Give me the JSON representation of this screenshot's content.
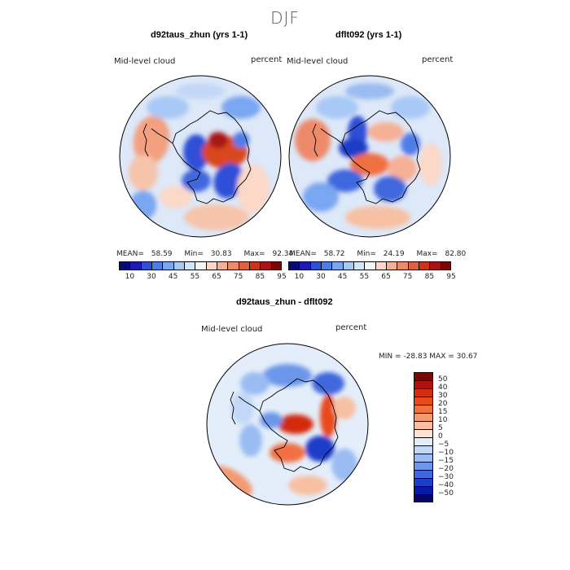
{
  "season": "DJF",
  "panels": [
    {
      "title": "d92taus_zhun (yrs 1-1)",
      "variable": "Mid-level cloud",
      "units": "percent",
      "stats": {
        "mean_label": "MEAN=",
        "mean": "58.59",
        "min_label": "Min=",
        "min": "30.83",
        "max_label": "Max=",
        "max": "92.34"
      }
    },
    {
      "title": "dflt092 (yrs 1-1)",
      "variable": "Mid-level cloud",
      "units": "percent",
      "stats": {
        "mean_label": "MEAN=",
        "mean": "58.72",
        "min_label": "Min=",
        "min": "24.19",
        "max_label": "Max=",
        "max": "82.80"
      }
    },
    {
      "title": "d92taus_zhun - dflt092",
      "variable": "Mid-level cloud",
      "units": "percent",
      "minmax_text": "MIN = -28.83 MAX =   30.67"
    }
  ],
  "abs_colorbar": {
    "colors": [
      "#08087a",
      "#1c1cb4",
      "#2e4fd6",
      "#4f7de8",
      "#7aa6f2",
      "#a8c8f6",
      "#d6e6fa",
      "#f5f5f5",
      "#fbd8c8",
      "#f6b096",
      "#ee8a6a",
      "#e45f3e",
      "#cc3318",
      "#a81414",
      "#7a0606"
    ],
    "labels": [
      "10",
      "30",
      "45",
      "55",
      "65",
      "75",
      "85",
      "95"
    ]
  },
  "diff_colorbar": {
    "colors": [
      "#7a0606",
      "#b01010",
      "#d32c10",
      "#e84a1a",
      "#f07042",
      "#f49a72",
      "#f8c0a2",
      "#fbe2d2",
      "#e2eefa",
      "#c2d8f6",
      "#9abcf2",
      "#6c96ea",
      "#3f68de",
      "#1c3ec8",
      "#0a1aa8",
      "#05056e"
    ],
    "labels": [
      "50",
      "40",
      "30",
      "20",
      "15",
      "10",
      "5",
      "0",
      "−5",
      "−10",
      "−15",
      "−20",
      "−30",
      "−40",
      "−50"
    ]
  }
}
